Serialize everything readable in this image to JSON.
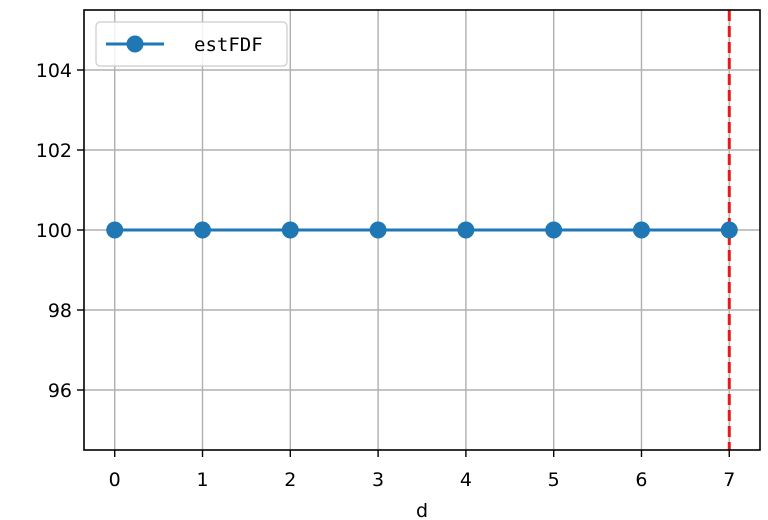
{
  "chart_data": {
    "type": "line",
    "x": [
      0,
      1,
      2,
      3,
      4,
      5,
      6,
      7
    ],
    "series": [
      {
        "name": "estFDF",
        "values": [
          100,
          100,
          100,
          100,
          100,
          100,
          100,
          100
        ],
        "color": "#1f77b4",
        "marker": "circle"
      }
    ],
    "xlabel": "d",
    "ylabel": "",
    "title": "",
    "xlim": [
      -0.35,
      7.35
    ],
    "ylim": [
      94.5,
      105.5
    ],
    "xticks": [
      0,
      1,
      2,
      3,
      4,
      5,
      6,
      7
    ],
    "yticks": [
      96,
      98,
      100,
      102,
      104
    ],
    "grid": true,
    "legend": "top-left",
    "vline": {
      "x": 7,
      "color": "#e41a1c",
      "style": "dashed"
    }
  }
}
